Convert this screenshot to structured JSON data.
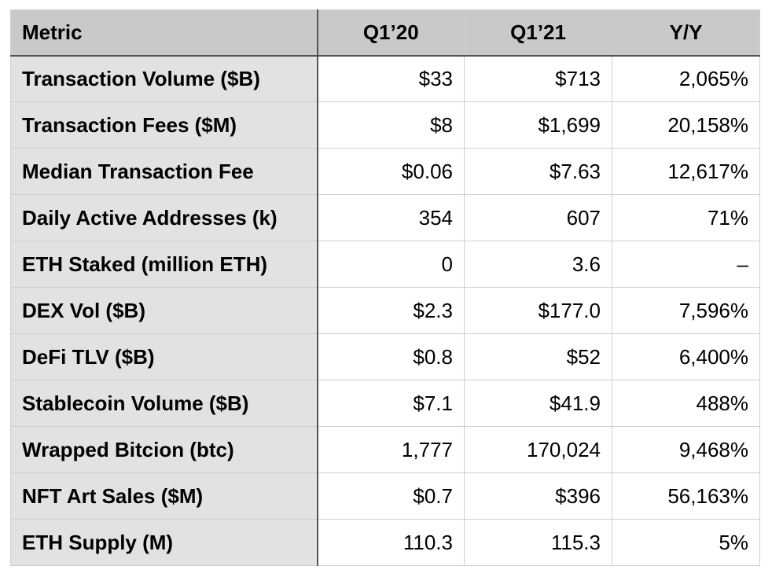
{
  "table": {
    "header": [
      "Metric",
      "Q1’20",
      "Q1’21",
      "Y/Y"
    ],
    "rows": [
      [
        "Transaction Volume ($B)",
        "$33",
        "$713",
        "2,065%"
      ],
      [
        "Transaction Fees ($M)",
        "$8",
        "$1,699",
        "20,158%"
      ],
      [
        "Median Transaction Fee",
        "$0.06",
        "$7.63",
        "12,617%"
      ],
      [
        "Daily Active Addresses (k)",
        "354",
        "607",
        "71%"
      ],
      [
        "ETH Staked (million ETH)",
        "0",
        "3.6",
        "–"
      ],
      [
        "DEX Vol ($B)",
        "$2.3",
        "$177.0",
        "7,596%"
      ],
      [
        "DeFi TLV ($B)",
        "$0.8",
        "$52",
        "6,400%"
      ],
      [
        "Stablecoin Volume ($B)",
        "$7.1",
        "$41.9",
        "488%"
      ],
      [
        "Wrapped Bitcion (btc)",
        "1,777",
        "170,024",
        "9,468%"
      ],
      [
        "NFT Art Sales ($M)",
        "$0.7",
        "$396",
        "56,163%"
      ],
      [
        "ETH Supply (M)",
        "110.3",
        "115.3",
        "5%"
      ]
    ]
  }
}
